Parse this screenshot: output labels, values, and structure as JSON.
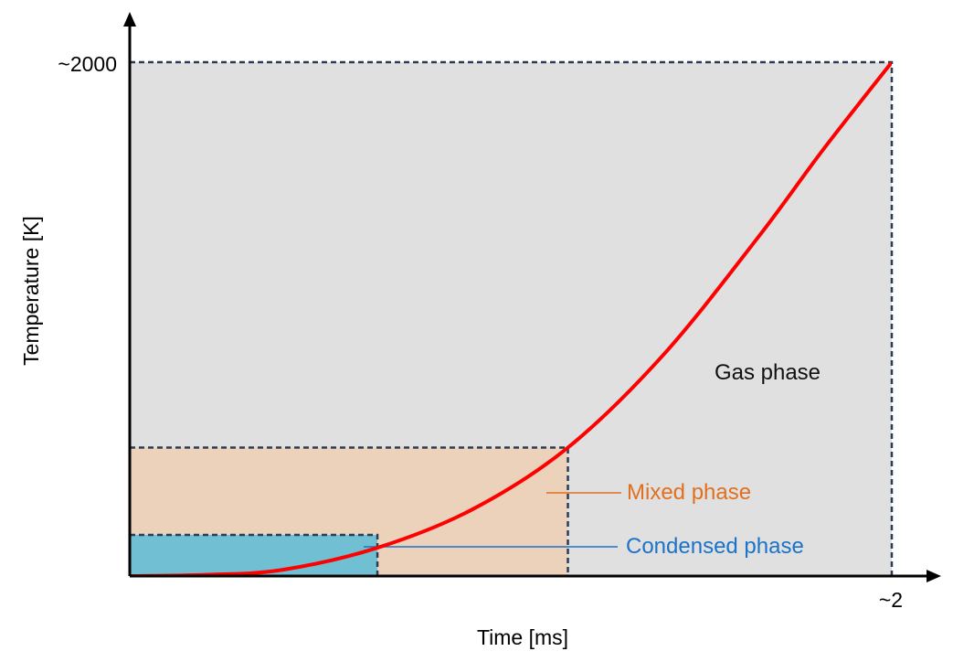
{
  "chart_data": {
    "type": "line",
    "title": "",
    "xlabel": "Time [ms]",
    "ylabel": "Temperature [K]",
    "x_tick_label": "~2",
    "y_tick_label": "~2000",
    "xlim": [
      0,
      2
    ],
    "ylim": [
      0,
      2000
    ],
    "series": [
      {
        "color": "#ff0000",
        "points": [
          [
            0,
            0
          ],
          [
            0.2,
            5
          ],
          [
            0.4,
            24
          ],
          [
            0.65,
            110
          ],
          [
            0.9,
            260
          ],
          [
            1.15,
            500
          ],
          [
            1.4,
            860
          ],
          [
            1.65,
            1320
          ],
          [
            1.82,
            1660
          ],
          [
            2.0,
            2000
          ]
        ]
      }
    ],
    "regions": [
      {
        "label": "Gas phase",
        "x_range": [
          0,
          2
        ],
        "y_range": [
          0,
          2000
        ],
        "fill": "#e0e0e0",
        "label_color": "#111111"
      },
      {
        "label": "Mixed phase",
        "x_range": [
          0,
          1.15
        ],
        "y_range": [
          0,
          500
        ],
        "fill": "#ecd1bb",
        "label_color": "#e07020"
      },
      {
        "label": "Condensed phase",
        "x_range": [
          0,
          0.65
        ],
        "y_range": [
          0,
          160
        ],
        "fill": "#70bfd3",
        "label_color": "#1a73c8"
      }
    ]
  }
}
